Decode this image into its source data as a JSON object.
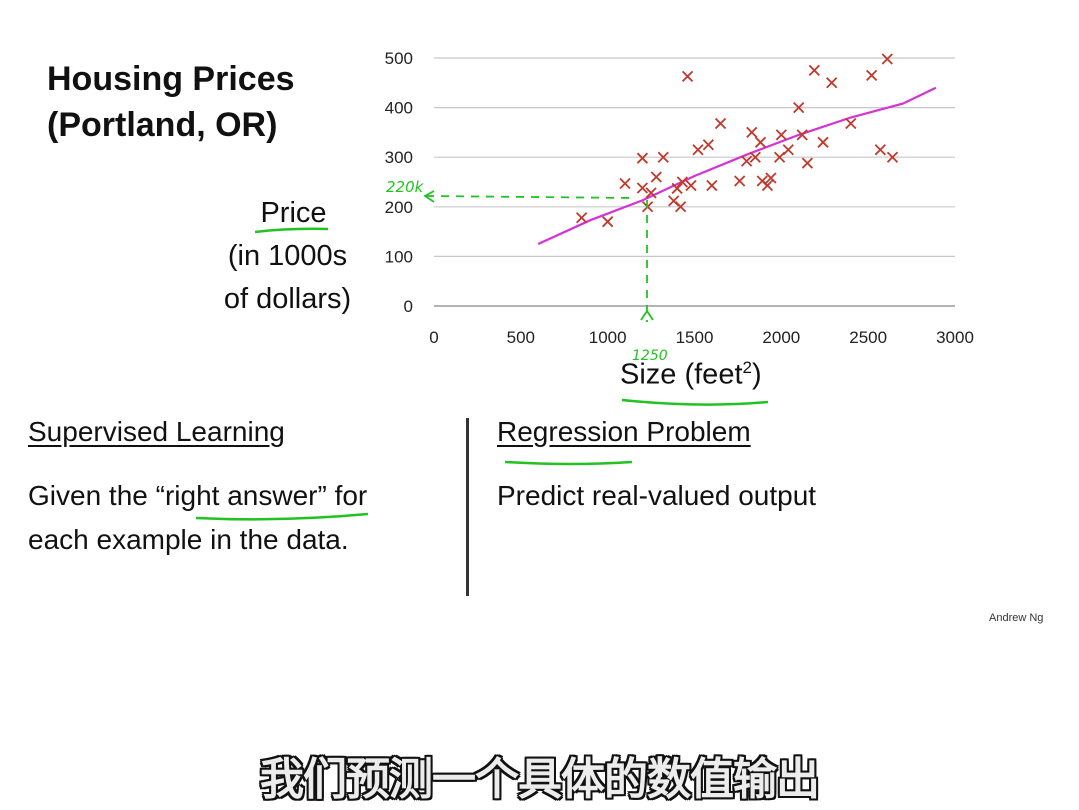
{
  "title": {
    "line1": "Housing Prices",
    "line2": "(Portland, OR)"
  },
  "ylabel": {
    "line1": "Price",
    "line2": "(in 1000s",
    "line3": "of dollars)"
  },
  "xlabel": {
    "text": "Size (feet",
    "sup": "2",
    "close": ")"
  },
  "left": {
    "heading": "Supervised Learning",
    "line1_pre": "Given the “",
    "line1_mid": "right answer",
    "line1_post": "” for",
    "line2": "each example in the data."
  },
  "right": {
    "heading": "Regression Problem",
    "body": "Predict real-valued output"
  },
  "credit": "Andrew Ng",
  "subtitle": "我们预测一个具体的数值输出",
  "annotations": {
    "y_readout": "220k",
    "x_readout": "1250"
  },
  "colors": {
    "marker": "#c0392b",
    "fit": "#d633d6",
    "ink": "#22c222"
  },
  "chart_data": {
    "type": "scatter",
    "x_ticks": [
      0,
      500,
      1000,
      1500,
      2000,
      2500,
      3000
    ],
    "y_ticks": [
      0,
      100,
      200,
      300,
      400,
      500
    ],
    "xlim": [
      0,
      3000
    ],
    "ylim": [
      0,
      500
    ],
    "grid": "horizontal",
    "points": [
      [
        850,
        178
      ],
      [
        1000,
        170
      ],
      [
        1100,
        247
      ],
      [
        1200,
        298
      ],
      [
        1200,
        238
      ],
      [
        1230,
        200
      ],
      [
        1250,
        228
      ],
      [
        1280,
        260
      ],
      [
        1320,
        300
      ],
      [
        1380,
        212
      ],
      [
        1400,
        237
      ],
      [
        1420,
        200
      ],
      [
        1430,
        250
      ],
      [
        1460,
        463
      ],
      [
        1480,
        243
      ],
      [
        1520,
        315
      ],
      [
        1580,
        325
      ],
      [
        1600,
        243
      ],
      [
        1650,
        368
      ],
      [
        1760,
        252
      ],
      [
        1800,
        292
      ],
      [
        1830,
        350
      ],
      [
        1850,
        300
      ],
      [
        1880,
        330
      ],
      [
        1890,
        252
      ],
      [
        1920,
        243
      ],
      [
        1940,
        258
      ],
      [
        1990,
        300
      ],
      [
        2000,
        345
      ],
      [
        2040,
        315
      ],
      [
        2100,
        400
      ],
      [
        2120,
        345
      ],
      [
        2150,
        288
      ],
      [
        2190,
        475
      ],
      [
        2240,
        330
      ],
      [
        2290,
        450
      ],
      [
        2400,
        368
      ],
      [
        2520,
        465
      ],
      [
        2570,
        315
      ],
      [
        2610,
        498
      ],
      [
        2640,
        300
      ]
    ],
    "fit_line": [
      [
        600,
        125
      ],
      [
        900,
        173
      ],
      [
        1200,
        213
      ],
      [
        1500,
        262
      ],
      [
        1800,
        305
      ],
      [
        2100,
        345
      ],
      [
        2400,
        380
      ],
      [
        2700,
        408
      ],
      [
        2890,
        440
      ]
    ]
  }
}
